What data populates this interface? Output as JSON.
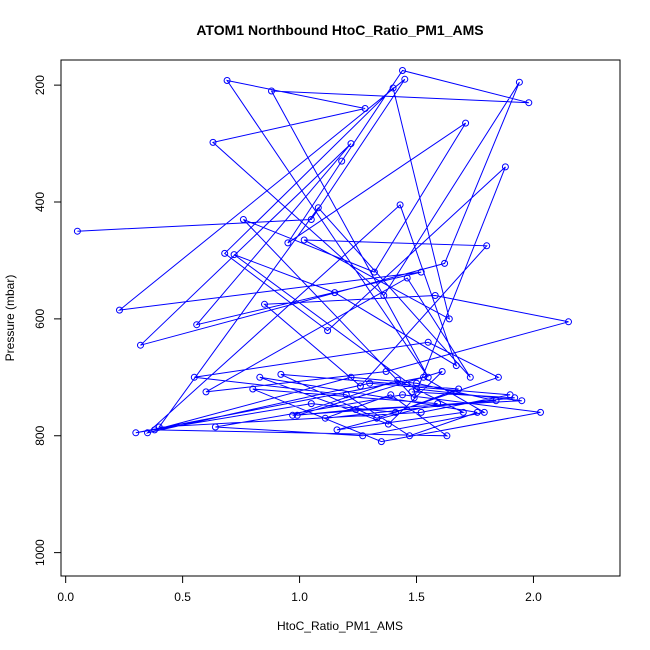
{
  "chart_data": {
    "type": "line",
    "title": "ATOM1 Northbound HtoC_Ratio_PM1_AMS",
    "xlabel": "HtoC_Ratio_PM1_AMS",
    "ylabel": "Pressure (mbar)",
    "xlim": [
      -0.02,
      2.37
    ],
    "ylim": [
      1040,
      157
    ],
    "y_reversed": true,
    "x_ticks": [
      "0.0",
      "0.5",
      "1.0",
      "1.5",
      "2.0"
    ],
    "x_tick_values": [
      0,
      0.5,
      1.0,
      1.5,
      2.0
    ],
    "y_ticks": [
      "200",
      "400",
      "600",
      "800",
      "1000"
    ],
    "y_tick_values": [
      200,
      400,
      600,
      800,
      1000
    ],
    "grid": false,
    "legend": "none",
    "color": "#0000ff",
    "marker": "open-circle",
    "series": [
      {
        "x": [
          0.05,
          1.05,
          1.45,
          0.23,
          1.52,
          0.56,
          1.22,
          0.32,
          1.62,
          1.94,
          1.36,
          0.63,
          1.28,
          0.69,
          1.55,
          0.88,
          1.98,
          1.44,
          1.18,
          0.95,
          1.71,
          1.32,
          0.76,
          1.49,
          1.88,
          1.12,
          0.68,
          1.4,
          1.64,
          1.02,
          1.8,
          1.26,
          0.85,
          1.58,
          2.15,
          1.37,
          0.6,
          1.46,
          1.73,
          1.08,
          0.4,
          1.52,
          1.9,
          1.3,
          0.35,
          1.43,
          1.67,
          1.15,
          0.72,
          1.5,
          1.95,
          1.24,
          0.99,
          1.61,
          1.38,
          0.83,
          1.76,
          1.47,
          1.2,
          0.55,
          1.55,
          1.85,
          1.33,
          0.92,
          1.68,
          1.41,
          1.05,
          0.3,
          1.53,
          1.79,
          1.27,
          0.64,
          1.44,
          2.03,
          1.35,
          0.8,
          1.59,
          1.16,
          1.7,
          1.42,
          0.97,
          1.84,
          1.5,
          1.22,
          0.38,
          1.63,
          1.39,
          1.11,
          1.92,
          1.48
        ],
        "y": [
          450,
          430,
          190,
          585,
          520,
          610,
          300,
          645,
          505,
          195,
          560,
          298,
          240,
          192,
          700,
          210,
          230,
          175,
          330,
          470,
          265,
          520,
          430,
          735,
          340,
          620,
          488,
          205,
          600,
          465,
          475,
          715,
          575,
          560,
          605,
          690,
          725,
          530,
          700,
          410,
          785,
          760,
          730,
          710,
          795,
          405,
          680,
          555,
          490,
          720,
          740,
          755,
          765,
          690,
          780,
          700,
          760,
          800,
          730,
          700,
          640,
          700,
          770,
          695,
          720,
          760,
          745,
          795,
          700,
          760,
          800,
          785,
          730,
          760,
          810,
          720,
          745,
          790,
          760,
          705,
          765,
          740,
          710,
          700,
          790,
          800,
          730,
          770,
          735,
          725
        ]
      }
    ]
  }
}
